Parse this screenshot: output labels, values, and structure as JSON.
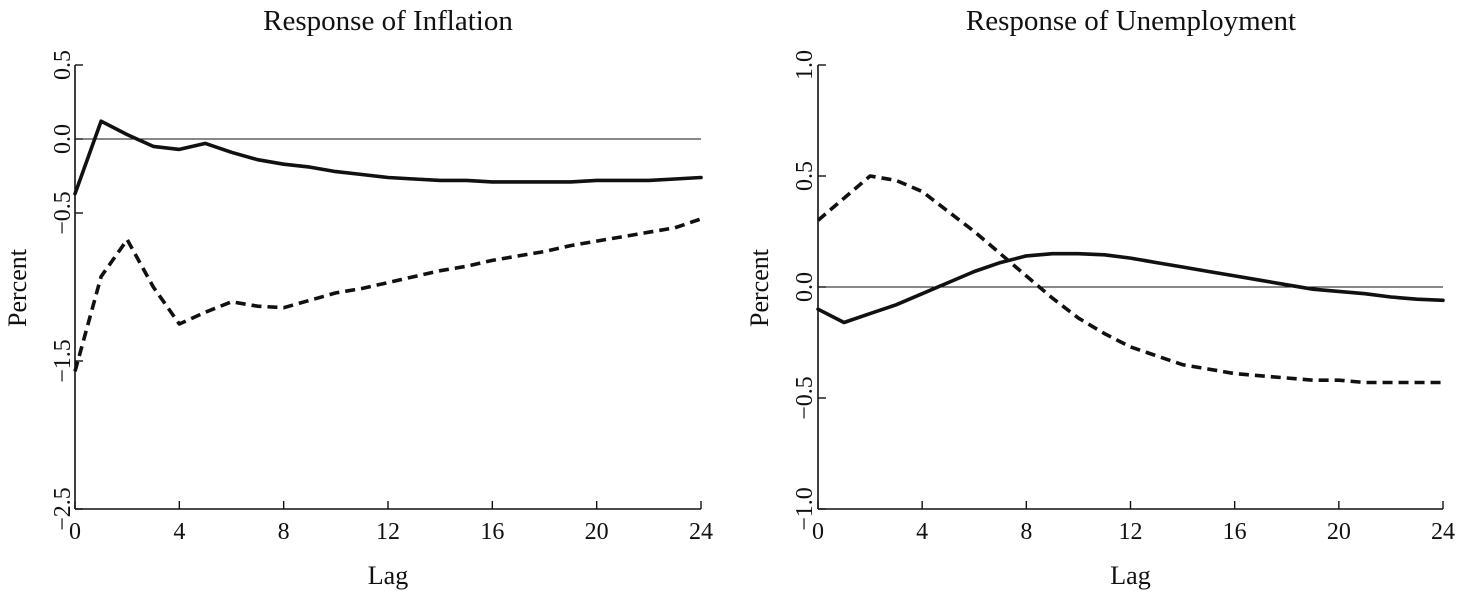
{
  "chart_data": [
    {
      "type": "line",
      "title": "Response of Inflation",
      "xlabel": "Lag",
      "ylabel": "Percent",
      "xlim": [
        0,
        24
      ],
      "ylim": [
        -2.5,
        0.5
      ],
      "xticks": [
        0,
        4,
        8,
        12,
        16,
        20,
        24
      ],
      "yticks": [
        -2.5,
        -1.5,
        -0.5,
        0.0,
        0.5
      ],
      "ytick_labels": [
        "−2.5",
        "−1.5",
        "−0.5",
        "0.0",
        "0.5"
      ],
      "zero_line": true,
      "series": [
        {
          "style": "solid",
          "x": [
            0,
            1,
            2,
            3,
            4,
            5,
            6,
            7,
            8,
            9,
            10,
            11,
            12,
            13,
            14,
            15,
            16,
            17,
            18,
            19,
            20,
            21,
            22,
            23,
            24
          ],
          "values": [
            -0.37,
            0.12,
            0.03,
            -0.05,
            -0.07,
            -0.03,
            -0.09,
            -0.14,
            -0.17,
            -0.19,
            -0.22,
            -0.24,
            -0.26,
            -0.27,
            -0.28,
            -0.28,
            -0.29,
            -0.29,
            -0.29,
            -0.29,
            -0.28,
            -0.28,
            -0.28,
            -0.27,
            -0.26
          ]
        },
        {
          "style": "dashed",
          "x": [
            0,
            1,
            2,
            3,
            4,
            5,
            6,
            7,
            8,
            9,
            10,
            11,
            12,
            13,
            14,
            15,
            16,
            17,
            18,
            19,
            20,
            21,
            22,
            23,
            24
          ],
          "values": [
            -1.57,
            -0.93,
            -0.68,
            -1.0,
            -1.25,
            -1.17,
            -1.1,
            -1.13,
            -1.14,
            -1.09,
            -1.04,
            -1.01,
            -0.97,
            -0.93,
            -0.89,
            -0.86,
            -0.82,
            -0.79,
            -0.76,
            -0.72,
            -0.69,
            -0.66,
            -0.63,
            -0.6,
            -0.54
          ]
        }
      ]
    },
    {
      "type": "line",
      "title": "Response of Unemployment",
      "xlabel": "Lag",
      "ylabel": "Percent",
      "xlim": [
        0,
        24
      ],
      "ylim": [
        -1.0,
        1.0
      ],
      "xticks": [
        0,
        4,
        8,
        12,
        16,
        20,
        24
      ],
      "yticks": [
        -1.0,
        -0.5,
        0.0,
        0.5,
        1.0
      ],
      "ytick_labels": [
        "−1.0",
        "−0.5",
        "0.0",
        "0.5",
        "1.0"
      ],
      "zero_line": true,
      "series": [
        {
          "style": "solid",
          "x": [
            0,
            1,
            2,
            3,
            4,
            5,
            6,
            7,
            8,
            9,
            10,
            11,
            12,
            13,
            14,
            15,
            16,
            17,
            18,
            19,
            20,
            21,
            22,
            23,
            24
          ],
          "values": [
            -0.1,
            -0.16,
            -0.12,
            -0.08,
            -0.03,
            0.02,
            0.07,
            0.11,
            0.14,
            0.15,
            0.15,
            0.145,
            0.13,
            0.11,
            0.09,
            0.07,
            0.05,
            0.03,
            0.01,
            -0.01,
            -0.02,
            -0.03,
            -0.045,
            -0.055,
            -0.06
          ]
        },
        {
          "style": "dashed",
          "x": [
            0,
            1,
            2,
            3,
            4,
            5,
            6,
            7,
            8,
            9,
            10,
            11,
            12,
            13,
            14,
            15,
            16,
            17,
            18,
            19,
            20,
            21,
            22,
            23,
            24
          ],
          "values": [
            0.3,
            0.4,
            0.5,
            0.48,
            0.43,
            0.34,
            0.25,
            0.15,
            0.05,
            -0.05,
            -0.14,
            -0.21,
            -0.27,
            -0.31,
            -0.35,
            -0.37,
            -0.39,
            -0.4,
            -0.41,
            -0.42,
            -0.42,
            -0.43,
            -0.43,
            -0.43,
            -0.43
          ]
        }
      ]
    }
  ]
}
